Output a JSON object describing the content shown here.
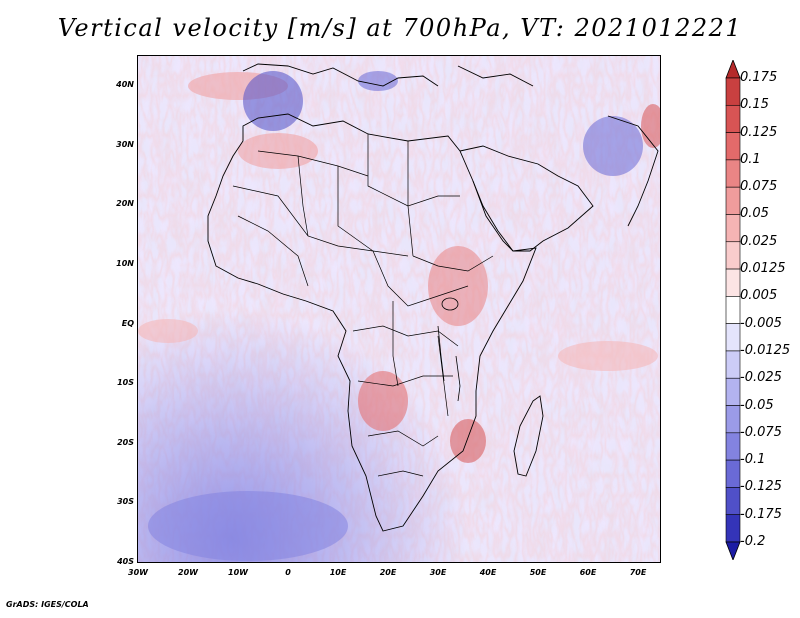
{
  "title": "Vertical velocity [m/s] at 700hPa, VT: 2021012221",
  "credit": "GrADS: IGES/COLA",
  "map": {
    "projection": "lat-lon",
    "lat_range": [
      -40,
      45
    ],
    "lon_range": [
      -30,
      75
    ],
    "lat_labels": [
      "40N",
      "30N",
      "20N",
      "10N",
      "EQ",
      "10S",
      "20S",
      "30S",
      "40S"
    ],
    "lon_labels": [
      "30W",
      "20W",
      "10W",
      "0",
      "10E",
      "20E",
      "30E",
      "40E",
      "50E",
      "60E",
      "70E"
    ]
  },
  "colorbar": {
    "labels": [
      "0.175",
      "0.15",
      "0.125",
      "0.1",
      "0.075",
      "0.05",
      "0.025",
      "0.0125",
      "0.005",
      "-0.005",
      "-0.0125",
      "-0.025",
      "-0.05",
      "-0.075",
      "-0.1",
      "-0.125",
      "-0.175",
      "-0.2"
    ],
    "colors": [
      "#b52a2a",
      "#c94040",
      "#d85454",
      "#e36a6a",
      "#ea8585",
      "#f09c9c",
      "#f5b4b4",
      "#f9cccc",
      "#fce4e4",
      "#ffffff",
      "#e4e4fc",
      "#ccccf7",
      "#b3b3f0",
      "#9b9be8",
      "#8383e0",
      "#6a6ad6",
      "#5050c8",
      "#3434b8",
      "#1c1ca4"
    ]
  }
}
